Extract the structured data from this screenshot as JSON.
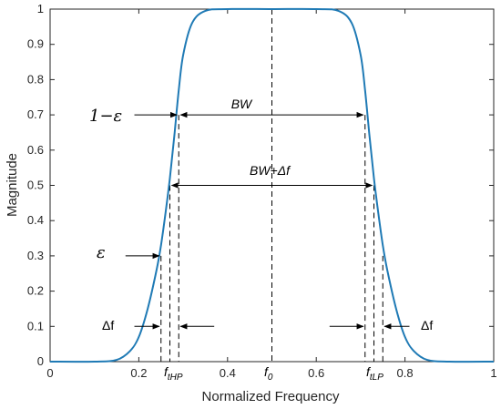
{
  "chart_data": {
    "type": "line",
    "xlabel": "Normalized Frequency",
    "ylabel": "Magnitude",
    "xlim": [
      0,
      1
    ],
    "ylim": [
      0,
      1
    ],
    "grid": false,
    "x_ticks": [
      "0",
      "0.2",
      "0.4",
      "0.6",
      "0.8",
      "1"
    ],
    "y_ticks": [
      "0",
      "0.1",
      "0.2",
      "0.3",
      "0.4",
      "0.5",
      "0.6",
      "0.7",
      "0.8",
      "0.9",
      "1"
    ],
    "series": [
      {
        "color": "#1f7ab5",
        "x": [
          0,
          0.1,
          0.15,
          0.18,
          0.2,
          0.22,
          0.24,
          0.25,
          0.26,
          0.27,
          0.28,
          0.29,
          0.3,
          0.32,
          0.35,
          0.4,
          0.5,
          0.6,
          0.65,
          0.68,
          0.7,
          0.71,
          0.72,
          0.73,
          0.74,
          0.75,
          0.76,
          0.78,
          0.8,
          0.82,
          0.85,
          0.9,
          1.0
        ],
        "y": [
          0,
          0,
          0.005,
          0.03,
          0.07,
          0.15,
          0.26,
          0.33,
          0.42,
          0.52,
          0.64,
          0.77,
          0.87,
          0.96,
          0.995,
          1,
          1,
          1,
          0.995,
          0.96,
          0.87,
          0.77,
          0.64,
          0.52,
          0.42,
          0.33,
          0.26,
          0.15,
          0.07,
          0.03,
          0.005,
          0,
          0
        ]
      }
    ],
    "markers": {
      "f0_x": 0.5,
      "bw_y": 0.7,
      "bw_x": [
        0.29,
        0.71
      ],
      "bwdf_y": 0.5,
      "bwdf_x": [
        0.27,
        0.73
      ],
      "eps_y": 0.3,
      "eps_x": 0.25,
      "df_y": 0.1,
      "hp_lines_x": [
        0.25,
        0.27,
        0.29
      ],
      "lp_lines_x": [
        0.71,
        0.73,
        0.75
      ],
      "f0_line_x": 0.5
    },
    "annotations": {
      "one_minus_eps": "1−ε",
      "bw": "BW",
      "bw_plus_df": "BW+Δf",
      "eps": "ε",
      "delta_f_left": "Δf",
      "delta_f_right": "Δf",
      "f_thp_main": "f",
      "f_thp_sub": "tHP",
      "f0_main": "f",
      "f0_sub": "0",
      "f_tlp_main": "f",
      "f_tlp_sub": "tLP"
    }
  }
}
